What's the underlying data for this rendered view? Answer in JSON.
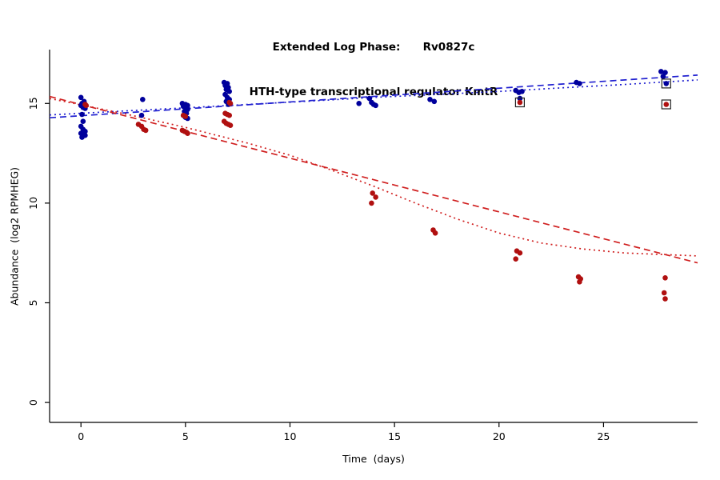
{
  "title": {
    "line1": "Extended Log Phase:      Rv0827c",
    "line2": "HTH-type transcriptional regulator KmtR"
  },
  "chart_data": {
    "type": "scatter",
    "xlabel": "Time  (days)",
    "ylabel": "Abundance  (log2 RPMHEG)",
    "xlim": [
      -1.5,
      29.5
    ],
    "ylim": [
      -1.0,
      17.7
    ],
    "xticks": [
      0,
      5,
      10,
      15,
      20,
      25
    ],
    "yticks": [
      0,
      5,
      10,
      15
    ],
    "grid": false,
    "legend": "none",
    "colors": {
      "blue_points": "#00009c",
      "red_points": "#b01010",
      "blue_line": "#2020d0",
      "red_line": "#d02020",
      "flag_square": "#222222"
    },
    "series": [
      {
        "name": "blue-series",
        "color": "#00009c",
        "points": [
          [
            0.0,
            15.3
          ],
          [
            0.15,
            15.1
          ],
          [
            0.05,
            15.0
          ],
          [
            0.2,
            14.95
          ],
          [
            0.0,
            14.9
          ],
          [
            0.1,
            14.8
          ],
          [
            0.2,
            14.75
          ],
          [
            0.05,
            14.45
          ],
          [
            0.1,
            14.1
          ],
          [
            0.0,
            13.85
          ],
          [
            0.1,
            13.7
          ],
          [
            0.2,
            13.6
          ],
          [
            0.0,
            13.5
          ],
          [
            0.1,
            13.45
          ],
          [
            0.2,
            13.4
          ],
          [
            0.05,
            13.3
          ],
          [
            2.95,
            15.2
          ],
          [
            2.9,
            14.4
          ],
          [
            4.85,
            15.0
          ],
          [
            5.0,
            14.95
          ],
          [
            5.1,
            14.9
          ],
          [
            4.9,
            14.85
          ],
          [
            5.0,
            14.8
          ],
          [
            5.1,
            14.7
          ],
          [
            4.95,
            14.6
          ],
          [
            5.05,
            14.5
          ],
          [
            4.9,
            14.4
          ],
          [
            5.0,
            14.3
          ],
          [
            5.1,
            14.25
          ],
          [
            6.85,
            16.05
          ],
          [
            7.0,
            16.0
          ],
          [
            6.9,
            15.9
          ],
          [
            7.05,
            15.8
          ],
          [
            6.95,
            15.7
          ],
          [
            7.1,
            15.6
          ],
          [
            6.9,
            15.45
          ],
          [
            7.0,
            15.3
          ],
          [
            7.1,
            15.2
          ],
          [
            6.95,
            15.1
          ],
          [
            7.05,
            14.95
          ],
          [
            13.3,
            15.0
          ],
          [
            13.8,
            15.25
          ],
          [
            13.9,
            15.05
          ],
          [
            14.0,
            14.95
          ],
          [
            14.1,
            14.9
          ],
          [
            16.7,
            15.2
          ],
          [
            16.9,
            15.1
          ],
          [
            20.8,
            15.65
          ],
          [
            20.95,
            15.55
          ],
          [
            21.1,
            15.6
          ],
          [
            21.0,
            15.25
          ],
          [
            23.7,
            16.05
          ],
          [
            23.85,
            16.0
          ],
          [
            27.75,
            16.6
          ],
          [
            27.95,
            16.55
          ],
          [
            27.85,
            16.35
          ]
        ]
      },
      {
        "name": "red-series",
        "color": "#b01010",
        "points": [
          [
            0.2,
            14.95
          ],
          [
            0.25,
            14.9
          ],
          [
            2.75,
            13.95
          ],
          [
            2.9,
            13.85
          ],
          [
            3.0,
            13.7
          ],
          [
            3.1,
            13.65
          ],
          [
            4.9,
            14.4
          ],
          [
            5.0,
            14.35
          ],
          [
            4.85,
            13.65
          ],
          [
            4.95,
            13.6
          ],
          [
            5.05,
            13.55
          ],
          [
            5.1,
            13.5
          ],
          [
            7.1,
            15.05
          ],
          [
            7.15,
            15.0
          ],
          [
            6.9,
            14.5
          ],
          [
            7.0,
            14.45
          ],
          [
            7.1,
            14.4
          ],
          [
            6.85,
            14.1
          ],
          [
            6.95,
            14.0
          ],
          [
            7.05,
            13.95
          ],
          [
            7.15,
            13.9
          ],
          [
            13.95,
            10.5
          ],
          [
            14.1,
            10.3
          ],
          [
            13.9,
            10.0
          ],
          [
            16.85,
            8.65
          ],
          [
            16.95,
            8.5
          ],
          [
            20.85,
            7.6
          ],
          [
            21.0,
            7.5
          ],
          [
            20.8,
            7.2
          ],
          [
            23.8,
            6.3
          ],
          [
            23.9,
            6.2
          ],
          [
            23.85,
            6.05
          ],
          [
            27.95,
            6.25
          ],
          [
            27.9,
            5.5
          ],
          [
            27.95,
            5.2
          ]
        ]
      }
    ],
    "flagged_points": [
      {
        "x": 21.0,
        "y": 15.05,
        "series": "red-series",
        "color": "#b01010"
      },
      {
        "x": 28.0,
        "y": 16.0,
        "series": "blue-series",
        "color": "#00009c"
      },
      {
        "x": 28.0,
        "y": 14.95,
        "series": "red-series",
        "color": "#b01010"
      }
    ],
    "trend_lines": [
      {
        "name": "blue-dashed-fit",
        "color": "#2020d0",
        "dash": "8,5",
        "points": [
          [
            -1.5,
            14.28
          ],
          [
            29.5,
            16.42
          ]
        ]
      },
      {
        "name": "blue-dotted-fit",
        "color": "#2020d0",
        "dash": "2,4",
        "points": [
          [
            -1.5,
            14.42
          ],
          [
            2,
            14.62
          ],
          [
            5,
            14.78
          ],
          [
            8,
            14.95
          ],
          [
            11,
            15.12
          ],
          [
            14,
            15.3
          ],
          [
            17,
            15.45
          ],
          [
            20,
            15.6
          ],
          [
            23,
            15.78
          ],
          [
            26,
            15.95
          ],
          [
            29.5,
            16.18
          ]
        ]
      },
      {
        "name": "red-dashed-fit",
        "color": "#d02020",
        "dash": "8,5",
        "points": [
          [
            -1.5,
            15.35
          ],
          [
            29.5,
            7.0
          ]
        ]
      },
      {
        "name": "red-dotted-fit",
        "color": "#d02020",
        "dash": "2,4",
        "points": [
          [
            -1.5,
            15.25
          ],
          [
            2,
            14.5
          ],
          [
            5,
            13.8
          ],
          [
            8,
            13.0
          ],
          [
            10,
            12.4
          ],
          [
            12,
            11.65
          ],
          [
            14,
            10.85
          ],
          [
            16,
            10.0
          ],
          [
            18,
            9.2
          ],
          [
            20,
            8.5
          ],
          [
            22,
            8.0
          ],
          [
            24,
            7.7
          ],
          [
            26,
            7.5
          ],
          [
            29.5,
            7.35
          ]
        ]
      }
    ]
  }
}
